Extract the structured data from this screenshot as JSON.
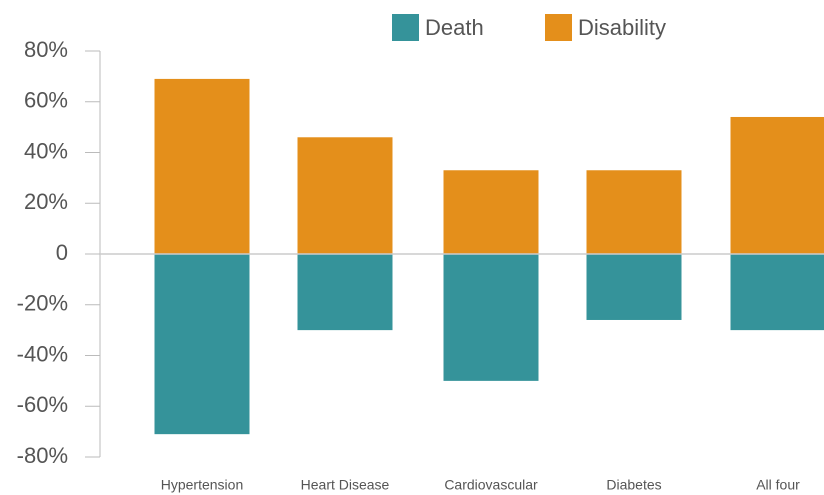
{
  "chart_data": {
    "type": "bar",
    "categories": [
      "Hypertension",
      "Heart Disease",
      "Cardiovascular",
      "Diabetes",
      "All four"
    ],
    "series": [
      {
        "name": "Death",
        "color": "#35939a",
        "values": [
          -71,
          -30,
          -50,
          -26,
          -30
        ]
      },
      {
        "name": "Disability",
        "color": "#e48f1b",
        "values": [
          69,
          46,
          33,
          33,
          54
        ]
      }
    ],
    "ylim": [
      -80,
      80
    ],
    "yticks": [
      {
        "value": -80,
        "label": "-80%"
      },
      {
        "value": -60,
        "label": "-60%"
      },
      {
        "value": -40,
        "label": "-40%"
      },
      {
        "value": -20,
        "label": "-20%"
      },
      0,
      {
        "value": 20,
        "label": "20%"
      },
      {
        "value": 40,
        "label": "40%"
      },
      {
        "value": 60,
        "label": "60%"
      },
      {
        "value": 80,
        "label": "80%"
      }
    ],
    "legend": "top"
  }
}
